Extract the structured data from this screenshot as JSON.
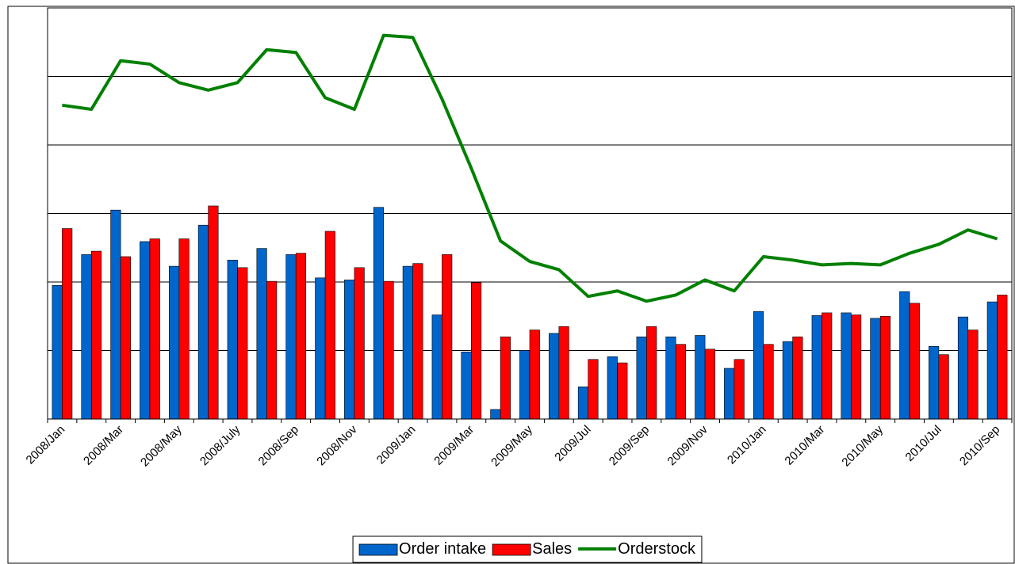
{
  "chart_data": {
    "type": "bar-line",
    "categories": [
      "2008/Jan",
      null,
      "2008/Mar",
      null,
      "2008/May",
      null,
      "2008/July",
      null,
      "2008/Sep",
      null,
      "2008/Nov",
      null,
      "2009/Jan",
      null,
      "2009/Mar",
      null,
      "2009/May",
      null,
      "2009/Jul",
      null,
      "2009/Sep",
      null,
      "2009/Nov",
      null,
      "2010/Jan",
      null,
      "2010/Mar",
      null,
      "2010/May",
      null,
      "2010/Jul",
      null,
      "2010/Sep"
    ],
    "series": [
      {
        "name": "Order intake",
        "type": "bar",
        "color": "#0066cc",
        "values": [
          1.95,
          2.4,
          3.05,
          2.59,
          2.23,
          2.83,
          2.32,
          2.49,
          2.4,
          2.06,
          2.03,
          3.09,
          2.23,
          1.52,
          0.98,
          0.14,
          1.0,
          1.25,
          0.47,
          0.91,
          1.2,
          1.2,
          1.22,
          0.74,
          1.57,
          1.13,
          1.51,
          1.55,
          1.47,
          1.86,
          1.06,
          1.49,
          1.71
        ]
      },
      {
        "name": "Sales",
        "type": "bar",
        "color": "#ff0000",
        "values": [
          2.78,
          2.45,
          2.37,
          2.63,
          2.63,
          3.11,
          2.21,
          2.01,
          2.42,
          2.74,
          2.21,
          2.01,
          2.27,
          2.4,
          1.99,
          1.2,
          1.3,
          1.35,
          0.87,
          0.82,
          1.35,
          1.09,
          1.02,
          0.87,
          1.09,
          1.2,
          1.55,
          1.52,
          1.5,
          1.69,
          0.94,
          1.3,
          1.81
        ]
      },
      {
        "name": "Orderstock",
        "type": "line",
        "color": "#008000",
        "values": [
          4.58,
          4.52,
          5.23,
          5.18,
          4.91,
          4.8,
          4.91,
          5.39,
          5.35,
          4.69,
          4.52,
          5.6,
          5.57,
          4.67,
          3.66,
          2.6,
          2.3,
          2.18,
          1.79,
          1.87,
          1.72,
          1.81,
          2.03,
          1.87,
          2.37,
          2.32,
          2.25,
          2.27,
          2.25,
          2.42,
          2.55,
          2.76,
          2.63
        ]
      }
    ],
    "ylim": [
      0,
      6
    ],
    "yticks": [
      0,
      1,
      2,
      3,
      4,
      5,
      6
    ],
    "grid": true,
    "legend": "bottom"
  }
}
